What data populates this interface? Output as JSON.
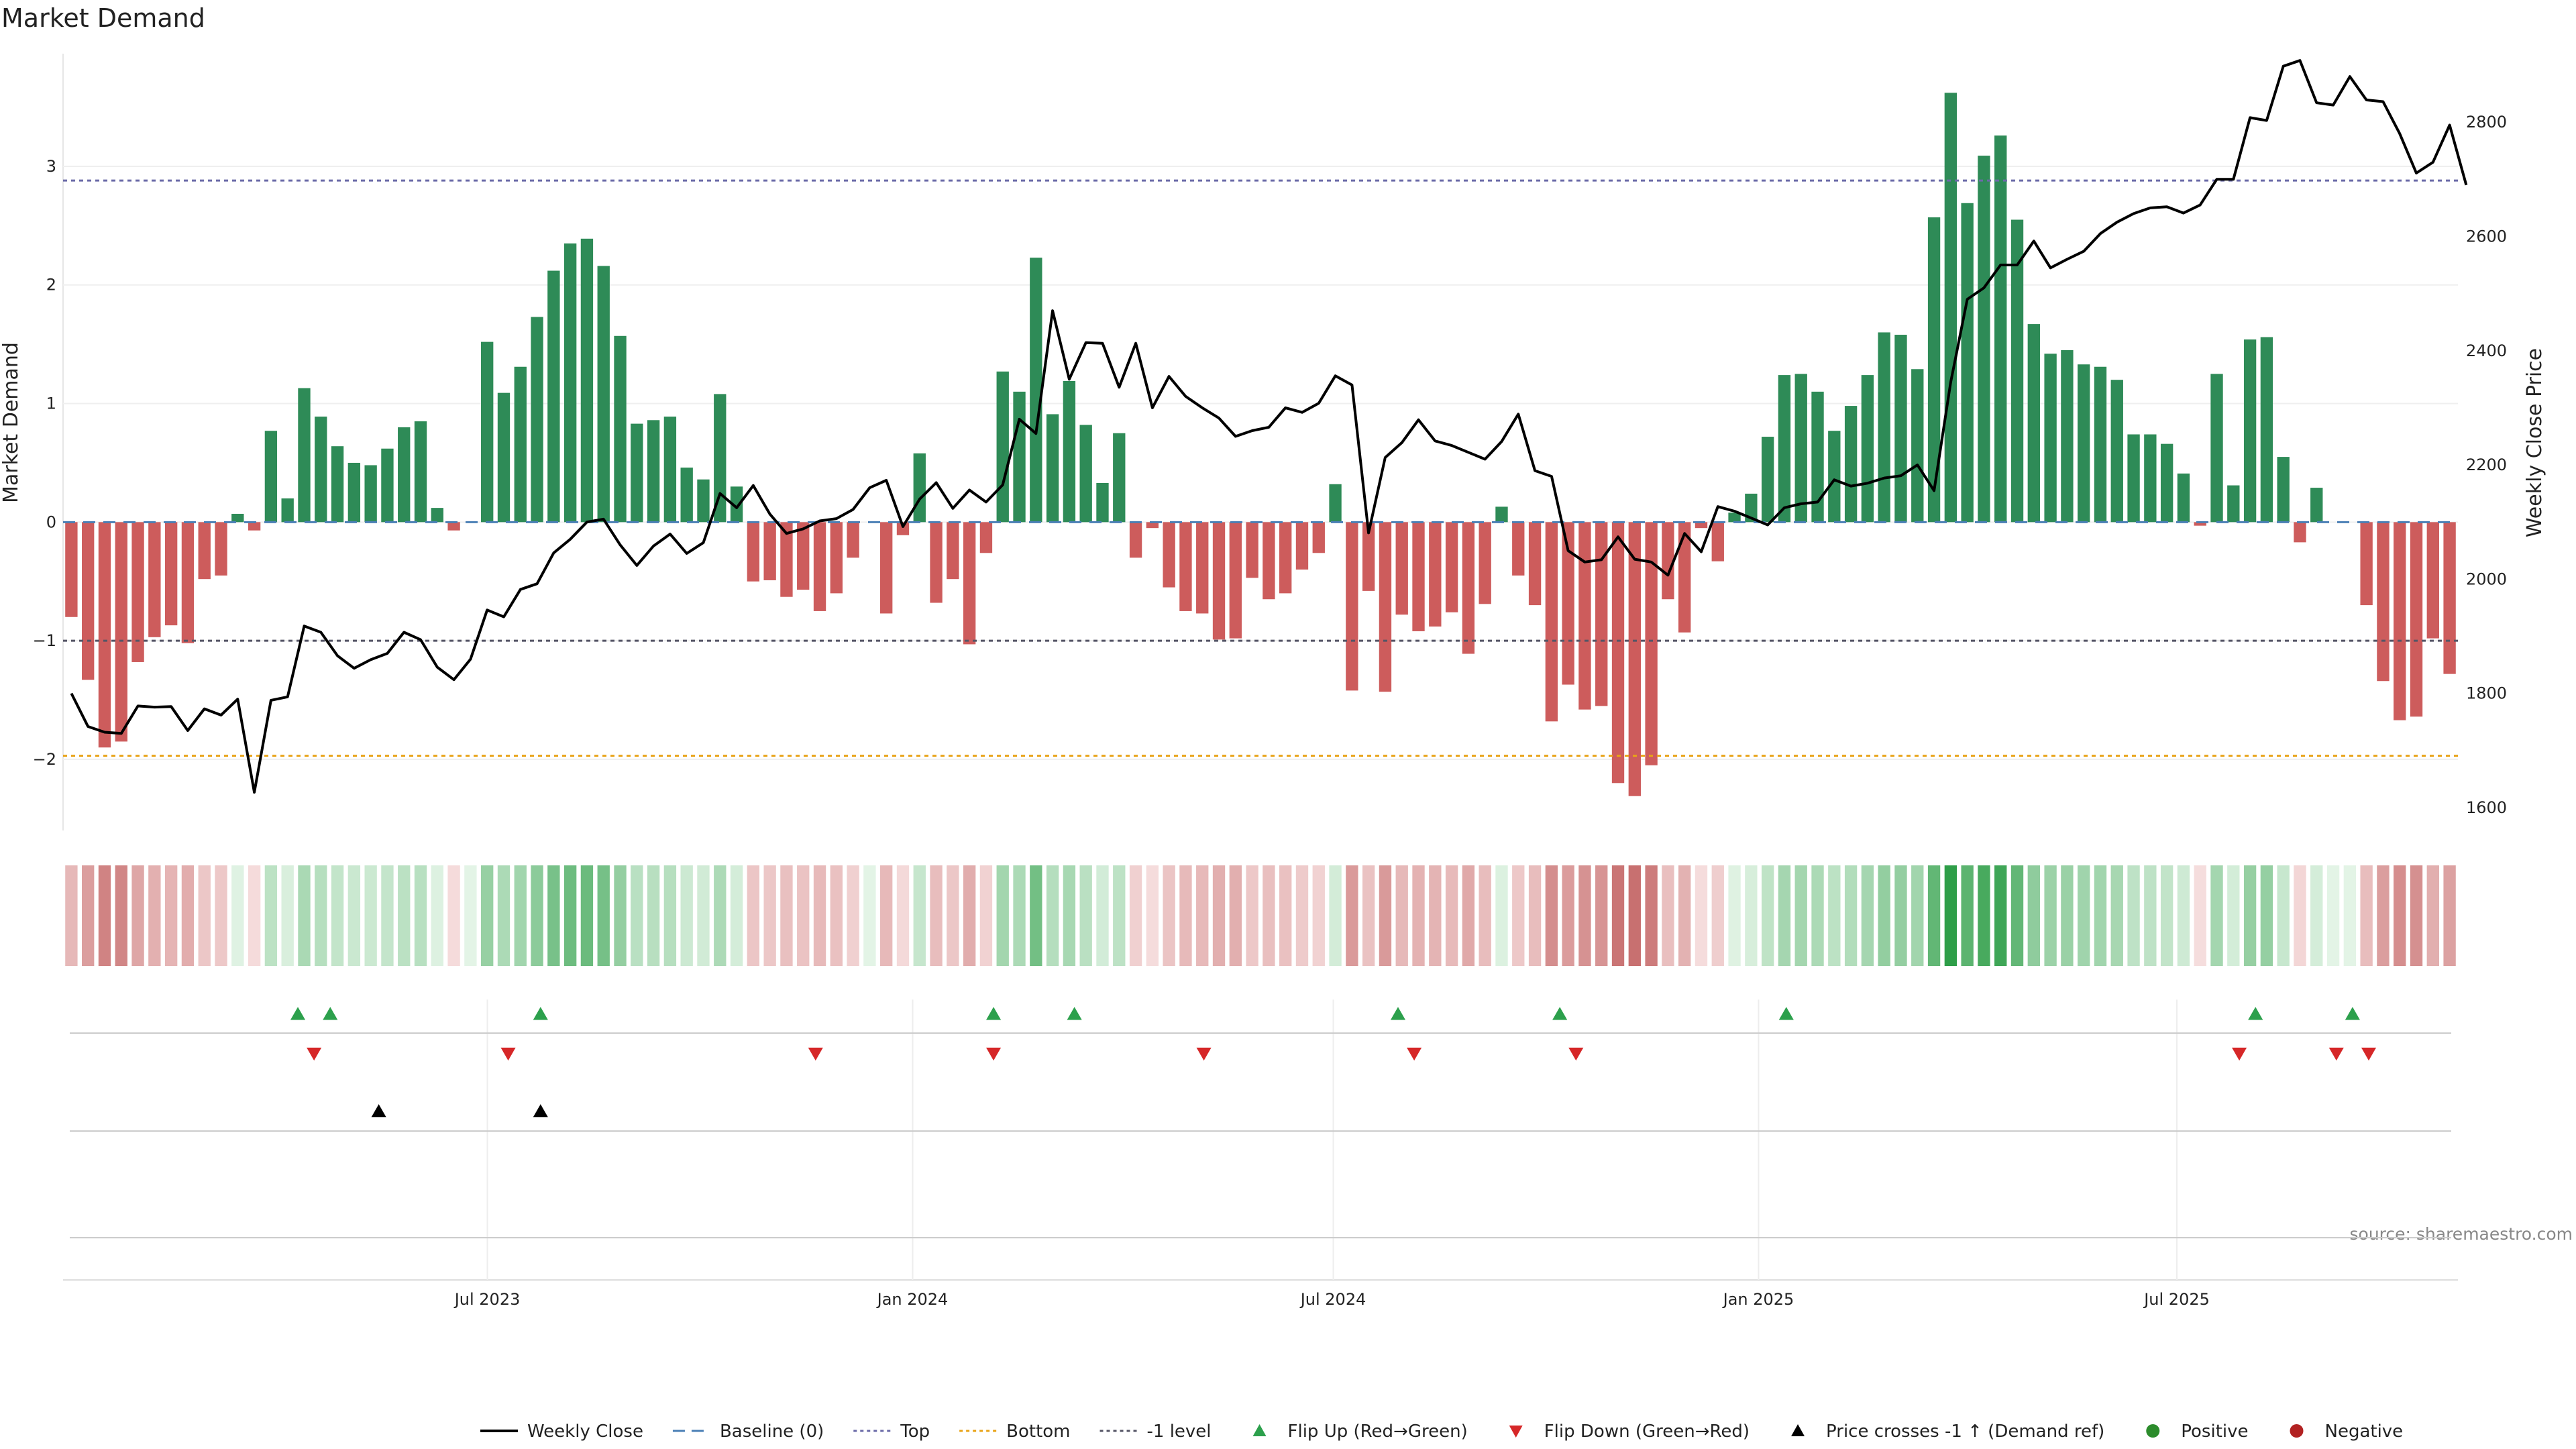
{
  "chart_data": {
    "type": "bar",
    "title": "Market Demand",
    "ylabel": "Market Demand",
    "y2label": "Weekly Close Price",
    "source": "source: sharemaestro.com",
    "ylim": [
      -2.6,
      3.95
    ],
    "y2lim": [
      1560,
      2920
    ],
    "yticks": [
      -2,
      -1,
      0,
      1,
      2,
      3
    ],
    "y2ticks": [
      1600,
      1800,
      2000,
      2200,
      2400,
      2600,
      2800
    ],
    "x_start": "2023-01-02",
    "x_end": "2025-10-27",
    "xticks": [
      {
        "date": "2023-07-01",
        "label": "Jul 2023"
      },
      {
        "date": "2024-01-01",
        "label": "Jan 2024"
      },
      {
        "date": "2024-07-01",
        "label": "Jul 2024"
      },
      {
        "date": "2025-01-01",
        "label": "Jan 2025"
      },
      {
        "date": "2025-07-01",
        "label": "Jul 2025"
      }
    ],
    "levels": {
      "top": 2.88,
      "minus_one": -1.0,
      "bottom": -1.97,
      "baseline": 0
    },
    "colors": {
      "positive": "#2e8b57",
      "negative": "#cd5c5c",
      "flip_up": "#2ca04c",
      "flip_down": "#d62728",
      "price": "#000000",
      "top": "#6b6ba8",
      "bottom": "#e8a317",
      "minus_one": "#555566"
    },
    "demand": [
      -0.8,
      -1.33,
      -1.9,
      -1.85,
      -1.18,
      -0.97,
      -0.87,
      -1.02,
      -0.48,
      -0.45,
      0.07,
      -0.07,
      0.77,
      0.2,
      1.13,
      0.89,
      0.64,
      0.5,
      0.48,
      0.62,
      0.8,
      0.85,
      0.12,
      -0.07,
      0,
      1.52,
      1.09,
      1.31,
      1.73,
      2.12,
      2.35,
      2.39,
      2.16,
      1.57,
      0.83,
      0.86,
      0.89,
      0.46,
      0.36,
      1.08,
      0.3,
      -0.5,
      -0.49,
      -0.63,
      -0.57,
      -0.75,
      -0.6,
      -0.3,
      0,
      -0.77,
      -0.11,
      0.58,
      -0.68,
      -0.48,
      -1.03,
      -0.26,
      1.27,
      1.1,
      2.23,
      0.91,
      1.19,
      0.82,
      0.33,
      0.75,
      -0.3,
      -0.05,
      -0.55,
      -0.75,
      -0.77,
      -0.99,
      -0.98,
      -0.47,
      -0.65,
      -0.6,
      -0.4,
      -0.26,
      0.32,
      -1.42,
      -0.58,
      -1.43,
      -0.78,
      -0.92,
      -0.88,
      -0.76,
      -1.11,
      -0.69,
      0.13,
      -0.45,
      -0.7,
      -1.68,
      -1.37,
      -1.58,
      -1.55,
      -2.2,
      -2.31,
      -2.05,
      -0.65,
      -0.93,
      -0.05,
      -0.33,
      0.08,
      0.24,
      0.72,
      1.24,
      1.25,
      1.1,
      0.77,
      0.98,
      1.24,
      1.6,
      1.58,
      1.29,
      2.57,
      3.62,
      2.69,
      3.09,
      3.26,
      2.55,
      1.67,
      1.42,
      1.45,
      1.33,
      1.31,
      1.2,
      0.74,
      0.74,
      0.66,
      0.41,
      -0.03,
      1.25,
      0.31,
      1.54,
      1.56,
      0.55,
      -0.17,
      0.29,
      0,
      0,
      -0.7,
      -1.34,
      -1.67,
      -1.64,
      -0.98,
      -1.28
    ],
    "price": [
      1800,
      1742,
      1732,
      1730,
      1778,
      1776,
      1777,
      1735,
      1773,
      1762,
      1790,
      1627,
      1788,
      1794,
      1918,
      1907,
      1866,
      1844,
      1859,
      1870,
      1907,
      1894,
      1846,
      1824,
      1860,
      1946,
      1934,
      1982,
      1992,
      2046,
      2070,
      2100,
      2105,
      2060,
      2024,
      2058,
      2079,
      2045,
      2064,
      2150,
      2125,
      2164,
      2114,
      2080,
      2088,
      2102,
      2106,
      2122,
      2160,
      2173,
      2092,
      2140,
      2169,
      2124,
      2156,
      2135,
      2165,
      2280,
      2255,
      2470,
      2350,
      2414,
      2413,
      2336,
      2413,
      2300,
      2355,
      2320,
      2300,
      2282,
      2250,
      2260,
      2266,
      2300,
      2292,
      2308,
      2356,
      2340,
      2081,
      2213,
      2239,
      2279,
      2242,
      2234,
      2222,
      2210,
      2241,
      2289,
      2190,
      2180,
      2050,
      2030,
      2034,
      2074,
      2035,
      2030,
      2007,
      2080,
      2048,
      2127,
      2119,
      2107,
      2095,
      2125,
      2132,
      2135,
      2174,
      2163,
      2168,
      2177,
      2181,
      2200,
      2155,
      2345,
      2490,
      2510,
      2550,
      2550,
      2592,
      2545,
      2560,
      2574,
      2605,
      2625,
      2640,
      2650,
      2652,
      2641,
      2655,
      2700,
      2700,
      2808,
      2803,
      2898,
      2908,
      2834,
      2830,
      2880,
      2839,
      2836,
      2780,
      2711,
      2730,
      2795,
      2690
    ],
    "flip_up": [
      "2023-04-10",
      "2023-04-24",
      "2023-07-24",
      "2024-02-05",
      "2024-03-11",
      "2024-07-29",
      "2024-10-07",
      "2025-01-13",
      "2025-08-04",
      "2025-09-15"
    ],
    "flip_down": [
      "2023-04-17",
      "2023-07-10",
      "2023-11-20",
      "2024-02-05",
      "2024-05-06",
      "2024-08-05",
      "2024-10-14",
      "2025-07-28",
      "2025-09-08",
      "2025-09-22"
    ],
    "price_cross": [
      "2023-05-15",
      "2023-07-24"
    ],
    "legend": [
      {
        "kind": "line",
        "label": "Weekly Close"
      },
      {
        "kind": "dash",
        "label": "Baseline (0)"
      },
      {
        "kind": "dot-top",
        "label": "Top"
      },
      {
        "kind": "dot-bottom",
        "label": "Bottom"
      },
      {
        "kind": "dot-minus",
        "label": "-1 level"
      },
      {
        "kind": "tri-up-green",
        "label": "Flip Up (Red→Green)"
      },
      {
        "kind": "tri-down-red",
        "label": "Flip Down (Green→Red)"
      },
      {
        "kind": "tri-up-black",
        "label": "Price crosses -1 ↑ (Demand ref)"
      },
      {
        "kind": "dot-green",
        "label": "Positive"
      },
      {
        "kind": "dot-red",
        "label": "Negative"
      }
    ]
  }
}
